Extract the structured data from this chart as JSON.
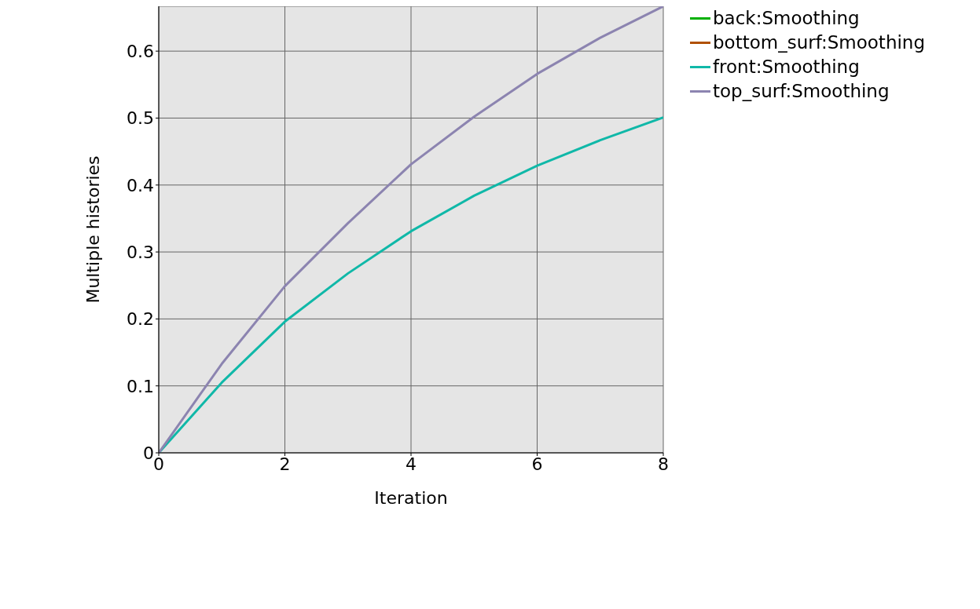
{
  "chart_data": {
    "type": "line",
    "xlabel": "Iteration",
    "ylabel": "Multiple histories",
    "x": [
      0,
      1,
      2,
      3,
      4,
      5,
      6,
      7,
      8
    ],
    "series": [
      {
        "name": "back:Smoothing",
        "color": "#00b000",
        "values": [
          null,
          null,
          null,
          null,
          null,
          null,
          null,
          null,
          null
        ]
      },
      {
        "name": "bottom_surf:Smoothing",
        "color": "#b05000",
        "values": [
          null,
          null,
          null,
          null,
          null,
          null,
          null,
          null,
          null
        ]
      },
      {
        "name": "front:Smoothing",
        "color": "#10b8a8",
        "values": [
          0,
          0.105,
          0.196,
          0.268,
          0.331,
          0.384,
          0.429,
          0.467,
          0.501
        ]
      },
      {
        "name": "top_surf:Smoothing",
        "color": "#8c84b0",
        "values": [
          0,
          0.133,
          0.249,
          0.343,
          0.431,
          0.502,
          0.566,
          0.62,
          0.667
        ]
      }
    ],
    "xlim": [
      0,
      8
    ],
    "xticks": [
      0,
      2,
      4,
      6,
      8
    ],
    "ylim": [
      0,
      0.667
    ],
    "yticks": [
      0,
      0.1,
      0.2,
      0.3,
      0.4,
      0.5,
      0.6
    ],
    "grid": true,
    "legend": "right",
    "marker": "none",
    "line_style": "solid"
  }
}
